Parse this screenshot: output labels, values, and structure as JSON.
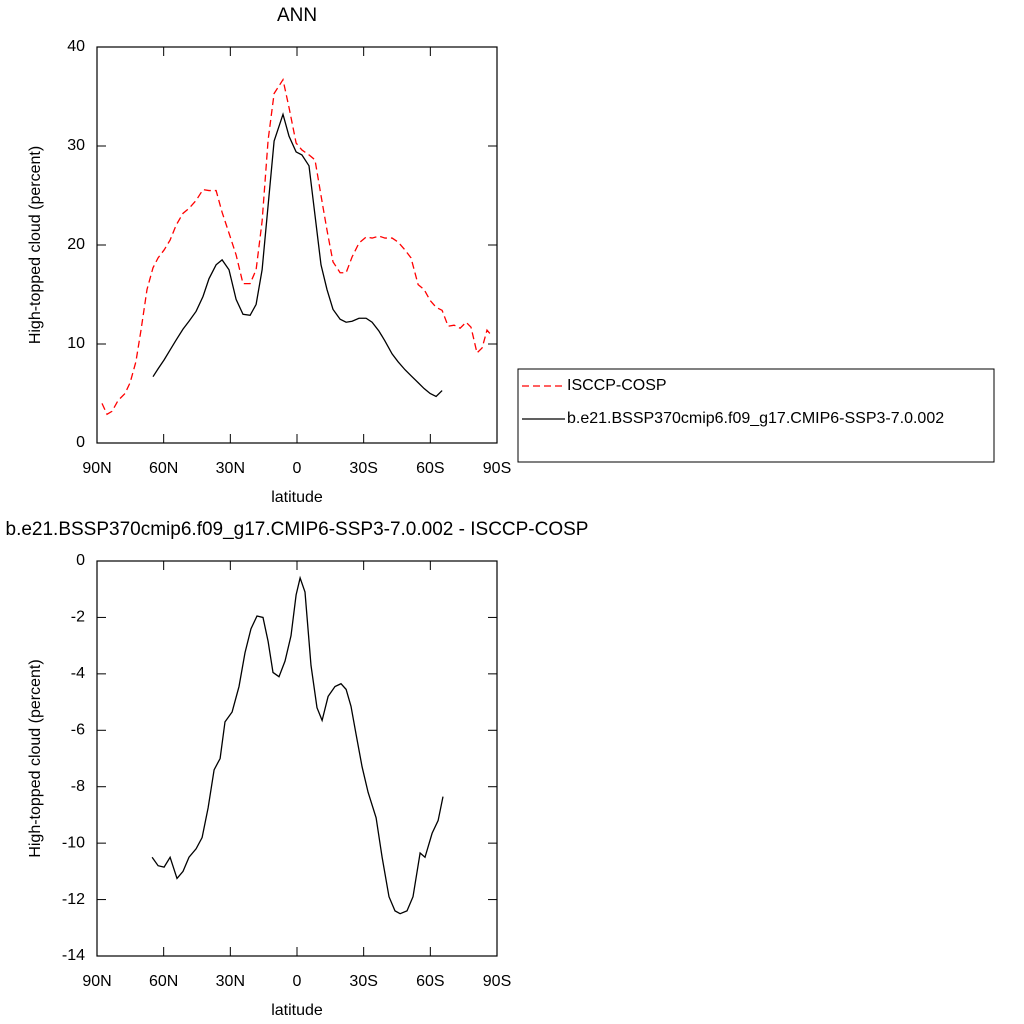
{
  "chart_data": [
    {
      "type": "line",
      "title": "ANN",
      "xlabel": "latitude",
      "ylabel": "High-topped cloud (percent)",
      "x": [
        87.75,
        85.5,
        83.25,
        80.5,
        77.4,
        75.1,
        72.5,
        70.2,
        67.5,
        64.8,
        62.5,
        59.8,
        57.1,
        54.4,
        51.3,
        48.6,
        45.4,
        42.3,
        39.6,
        36.4,
        33.7,
        30.6,
        27.4,
        24.3,
        21.1,
        18.4,
        15.7,
        13,
        10.3,
        6.3,
        3.6,
        0.4,
        -2.2,
        -5.4,
        -8.1,
        -10.8,
        -13.5,
        -16.2,
        -19.4,
        -22.1,
        -24.8,
        -27.9,
        -31.1,
        -33.8,
        -36.9,
        -39.6,
        -42.8,
        -45.5,
        -48.6,
        -51.3,
        -54.5,
        -57.2,
        -59.9,
        -62.6,
        -65.3,
        -68,
        -70.7,
        -73.4,
        -76.1,
        -78.3,
        -81,
        -83.3,
        -85.5,
        -87.8
      ],
      "series": [
        {
          "name": "ISCCP-COSP",
          "color": "#ff0000",
          "dash": "dashed",
          "values": [
            4.0,
            2.9,
            3.2,
            4.3,
            5.0,
            6.1,
            8.2,
            11.4,
            15.5,
            17.7,
            18.7,
            19.5,
            20.5,
            22,
            23.2,
            23.7,
            24.5,
            25.6,
            25.5,
            25.5,
            23.3,
            21.2,
            19,
            16.1,
            16.1,
            17.5,
            22.4,
            30.6,
            35.3,
            36.7,
            33.9,
            30.3,
            29.6,
            29.1,
            28.6,
            25,
            21.5,
            18.3,
            17.2,
            17.2,
            18.8,
            20.2,
            20.8,
            20.7,
            20.9,
            20.7,
            20.7,
            20.3,
            19.5,
            18.7,
            16,
            15.5,
            14.4,
            13.7,
            13.4,
            11.8,
            11.9,
            11.6,
            12.2,
            11.7,
            9.1,
            9.6,
            11.4,
            10.8
          ]
        },
        {
          "name": "b.e21.BSSP370cmip6.f09_g17.CMIP6-SSP3-7.0.002",
          "color": "#000000",
          "dash": "solid",
          "values": [
            null,
            null,
            null,
            null,
            null,
            null,
            null,
            null,
            null,
            6.7,
            7.5,
            8.4,
            9.4,
            10.4,
            11.5,
            12.3,
            13.3,
            14.8,
            16.6,
            18.0,
            18.5,
            17.5,
            14.5,
            13.0,
            12.9,
            14.0,
            17.5,
            24,
            30.5,
            33.2,
            31.0,
            29.4,
            29.1,
            28,
            23,
            18,
            15.5,
            13.5,
            12.5,
            12.2,
            12.3,
            12.6,
            12.6,
            12.2,
            11.3,
            10.3,
            9.0,
            8.2,
            7.4,
            6.8,
            6.1,
            5.5,
            5.0,
            4.7,
            5.3,
            null,
            null,
            null,
            null,
            null,
            null,
            null,
            null,
            null
          ]
        }
      ],
      "xlim": [
        90,
        -90
      ],
      "ylim": [
        0,
        40
      ],
      "xticks": [
        {
          "value": 90,
          "label": "90N"
        },
        {
          "value": 60,
          "label": "60N"
        },
        {
          "value": 30,
          "label": "30N"
        },
        0,
        {
          "value": -30,
          "label": "30S"
        },
        {
          "value": -60,
          "label": "60S"
        },
        {
          "value": -90,
          "label": "90S"
        }
      ],
      "yticks": [
        0,
        10,
        20,
        30,
        40
      ],
      "legend": "right"
    },
    {
      "type": "line",
      "title": "b.e21.BSSP370cmip6.f09_g17.CMIP6-SSP3-7.0.002 - ISCCP-COSP",
      "xlabel": "latitude",
      "ylabel": "High-topped cloud (percent)",
      "x": [
        65.2,
        62.5,
        59.8,
        57.1,
        54,
        51.3,
        48.6,
        45.4,
        42.7,
        40,
        37.3,
        34.6,
        32.4,
        29.2,
        26.1,
        23.4,
        20.7,
        18,
        15.3,
        13,
        10.8,
        8.1,
        5.4,
        2.7,
        0.4,
        -1.4,
        -3.6,
        -6.3,
        -9,
        -11.3,
        -14,
        -17.1,
        -19.8,
        -22.1,
        -24.3,
        -26.6,
        -29.3,
        -32,
        -35.6,
        -38.3,
        -41.4,
        -44.1,
        -46.4,
        -49.5,
        -52.2,
        -55.4,
        -57.6,
        -60.8,
        -63.5,
        -65.7
      ],
      "series": [
        {
          "color": "#000000",
          "dash": "solid",
          "values": [
            -10.5,
            -10.8,
            -10.85,
            -10.5,
            -11.25,
            -11.0,
            -10.5,
            -10.2,
            -9.8,
            -8.75,
            -7.4,
            -7.0,
            -5.7,
            -5.35,
            -4.45,
            -3.25,
            -2.4,
            -1.95,
            -2.0,
            -2.85,
            -3.95,
            -4.1,
            -3.55,
            -2.65,
            -1.2,
            -0.6,
            -1.1,
            -3.7,
            -5.2,
            -5.65,
            -4.8,
            -4.45,
            -4.35,
            -4.55,
            -5.15,
            -6.15,
            -7.3,
            -8.2,
            -9.1,
            -10.5,
            -11.9,
            -12.4,
            -12.5,
            -12.4,
            -11.9,
            -10.35,
            -10.5,
            -9.65,
            -9.2,
            -8.35
          ]
        }
      ],
      "xlim": [
        90,
        -90
      ],
      "ylim": [
        -14,
        0
      ],
      "xticks": [
        {
          "value": 90,
          "label": "90N"
        },
        {
          "value": 60,
          "label": "60N"
        },
        {
          "value": 30,
          "label": "30N"
        },
        0,
        {
          "value": -30,
          "label": "30S"
        },
        {
          "value": -60,
          "label": "60S"
        },
        {
          "value": -90,
          "label": "90S"
        }
      ],
      "yticks": [
        -14,
        -12,
        -10,
        -8,
        -6,
        -4,
        -2,
        0
      ]
    }
  ]
}
